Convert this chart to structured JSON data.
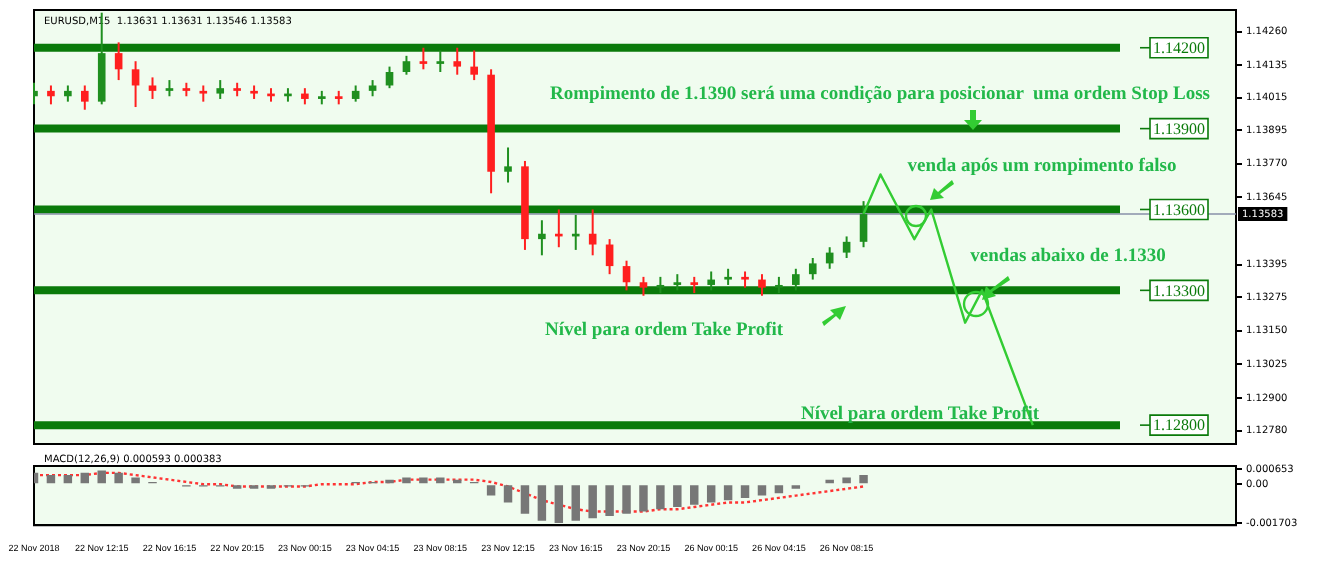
{
  "chart_data": [
    {
      "type": "candlestick",
      "title": "EURUSD,M15  1.13631 1.13631 1.13546 1.13583",
      "categories": [
        null,
        null,
        null,
        null,
        null,
        null,
        null,
        null,
        null,
        null,
        null,
        null,
        null,
        null,
        null,
        null,
        null,
        null,
        null,
        null,
        null,
        null,
        null,
        null,
        null,
        null,
        null,
        null,
        null,
        null,
        null,
        null,
        null,
        null,
        null,
        null,
        null,
        null,
        null,
        null,
        null,
        null,
        null,
        null,
        null,
        null,
        null,
        null,
        null,
        null,
        null,
        null,
        null,
        null,
        null,
        null,
        null,
        null,
        null,
        null,
        null,
        null,
        null,
        null,
        null,
        null,
        null,
        null,
        null,
        null,
        null,
        null
      ],
      "ohlc": [
        [
          1.1402,
          1.1407,
          1.1399,
          1.1404
        ],
        [
          1.1404,
          1.1406,
          1.1399,
          1.1402
        ],
        [
          1.1402,
          1.1406,
          1.14,
          1.1404
        ],
        [
          1.1404,
          1.1406,
          1.1397,
          1.14
        ],
        [
          1.14,
          1.1433,
          1.1399,
          1.1418
        ],
        [
          1.1418,
          1.1422,
          1.1408,
          1.1412
        ],
        [
          1.1412,
          1.1415,
          1.1398,
          1.1406
        ],
        [
          1.1406,
          1.1409,
          1.1401,
          1.1404
        ],
        [
          1.1404,
          1.1408,
          1.1402,
          1.1405
        ],
        [
          1.1405,
          1.1407,
          1.1402,
          1.1404
        ],
        [
          1.1404,
          1.1406,
          1.14,
          1.1403
        ],
        [
          1.1403,
          1.1408,
          1.1401,
          1.1405
        ],
        [
          1.1405,
          1.1407,
          1.1402,
          1.1404
        ],
        [
          1.1404,
          1.1406,
          1.1401,
          1.1403
        ],
        [
          1.1403,
          1.1405,
          1.14,
          1.1402
        ],
        [
          1.1402,
          1.1405,
          1.14,
          1.1403
        ],
        [
          1.1403,
          1.1405,
          1.1399,
          1.1401
        ],
        [
          1.1401,
          1.1404,
          1.1399,
          1.1402
        ],
        [
          1.1402,
          1.1404,
          1.1399,
          1.1401
        ],
        [
          1.1401,
          1.1406,
          1.14,
          1.1404
        ],
        [
          1.1404,
          1.1408,
          1.1402,
          1.1406
        ],
        [
          1.1406,
          1.1413,
          1.1405,
          1.1411
        ],
        [
          1.1411,
          1.1417,
          1.141,
          1.1415
        ],
        [
          1.1415,
          1.142,
          1.1412,
          1.1414
        ],
        [
          1.1414,
          1.1419,
          1.1411,
          1.1415
        ],
        [
          1.1415,
          1.142,
          1.141,
          1.1413
        ],
        [
          1.1413,
          1.1419,
          1.1408,
          1.141
        ],
        [
          1.141,
          1.1412,
          1.1366,
          1.1374
        ],
        [
          1.1374,
          1.1383,
          1.137,
          1.1376
        ],
        [
          1.1376,
          1.1378,
          1.1345,
          1.1349
        ],
        [
          1.1349,
          1.1356,
          1.1343,
          1.1351
        ],
        [
          1.1351,
          1.136,
          1.1346,
          1.135
        ],
        [
          1.135,
          1.1358,
          1.1345,
          1.1351
        ],
        [
          1.1351,
          1.136,
          1.1343,
          1.1347
        ],
        [
          1.1347,
          1.1349,
          1.1336,
          1.1339
        ],
        [
          1.1339,
          1.1341,
          1.133,
          1.1333
        ],
        [
          1.1333,
          1.1335,
          1.1328,
          1.1331
        ],
        [
          1.1331,
          1.1335,
          1.1329,
          1.1332
        ],
        [
          1.1332,
          1.1336,
          1.133,
          1.1333
        ],
        [
          1.1333,
          1.1335,
          1.1329,
          1.1332
        ],
        [
          1.1332,
          1.1337,
          1.133,
          1.1334
        ],
        [
          1.1334,
          1.1338,
          1.1332,
          1.1335
        ],
        [
          1.1335,
          1.1337,
          1.1331,
          1.1334
        ],
        [
          1.1334,
          1.1336,
          1.1328,
          1.1331
        ],
        [
          1.1331,
          1.1335,
          1.1329,
          1.1332
        ],
        [
          1.1332,
          1.1338,
          1.133,
          1.1336
        ],
        [
          1.1336,
          1.1342,
          1.1334,
          1.134
        ],
        [
          1.134,
          1.1346,
          1.1338,
          1.1344
        ],
        [
          1.1344,
          1.135,
          1.1342,
          1.1348
        ],
        [
          1.1348,
          1.13631,
          1.1346,
          1.13583
        ],
        null,
        null,
        null,
        null,
        null,
        null,
        null,
        null,
        null,
        null,
        null,
        null,
        null,
        null,
        null,
        null,
        null,
        null,
        null,
        null,
        null,
        null
      ],
      "series": [
        {
          "type": "line",
          "color": "#33cc33",
          "values": [
            null,
            null,
            null,
            null,
            null,
            null,
            null,
            null,
            null,
            null,
            null,
            null,
            null,
            null,
            null,
            null,
            null,
            null,
            null,
            null,
            null,
            null,
            null,
            null,
            null,
            null,
            null,
            null,
            null,
            null,
            null,
            null,
            null,
            null,
            null,
            null,
            null,
            null,
            null,
            null,
            null,
            null,
            null,
            null,
            null,
            null,
            null,
            null,
            null,
            1.13583,
            1.1373,
            null,
            1.1349,
            1.136,
            null,
            1.1318,
            1.133,
            null,
            null,
            1.128,
            null,
            null,
            null,
            null,
            null,
            null,
            null,
            null,
            null,
            null,
            null,
            null
          ]
        }
      ],
      "ylim": [
        1.1273,
        1.1434
      ],
      "yticks": [
        {
          "value": 1.1426,
          "label": "1.14260"
        },
        {
          "value": 1.14135,
          "label": "1.14135"
        },
        {
          "value": 1.14015,
          "label": "1.14015"
        },
        {
          "value": 1.13895,
          "label": "1.13895"
        },
        {
          "value": 1.1377,
          "label": "1.13770"
        },
        {
          "value": 1.13645,
          "label": "1.13645"
        },
        {
          "value": 1.13395,
          "label": "1.13395"
        },
        {
          "value": 1.13275,
          "label": "1.13275"
        },
        {
          "value": 1.1315,
          "label": "1.13150"
        },
        {
          "value": 1.13025,
          "label": "1.13025"
        },
        {
          "value": 1.129,
          "label": "1.12900"
        },
        {
          "value": 1.1278,
          "label": "1.12780"
        }
      ],
      "tick_labels": "y",
      "ref_lines": [
        {
          "axis": "y",
          "value": 1.142,
          "label": "1.14200",
          "color": "#0a7a0a"
        },
        {
          "axis": "y",
          "value": 1.139,
          "label": "1.13900",
          "color": "#0a7a0a"
        },
        {
          "axis": "y",
          "value": 1.136,
          "label": "1.13600",
          "color": "#0a7a0a"
        },
        {
          "axis": "y",
          "value": 1.133,
          "label": "1.13300",
          "color": "#0a7a0a"
        },
        {
          "axis": "y",
          "value": 1.128,
          "label": "1.12800",
          "color": "#0a7a0a"
        },
        {
          "axis": "y",
          "value": 1.13583,
          "label": "1.13583",
          "color": "#8890a8"
        }
      ],
      "annotations": [
        "Rompimento de 1.1390 será uma condição para posicionar  uma ordem Stop Loss",
        "venda após um rompimento falso",
        "vendas abaixo de 1.1330",
        "Nível para ordem Take Profit",
        "Nível para ordem Take Profit"
      ]
    },
    {
      "type": "bar",
      "title": "MACD(12,26,9) 0.000593 0.000383",
      "categories": [
        "22 Nov 2018",
        null,
        null,
        null,
        "22 Nov 12:15",
        null,
        null,
        null,
        "22 Nov 16:15",
        null,
        null,
        null,
        "22 Nov 20:15",
        null,
        null,
        null,
        "23 Nov 00:15",
        null,
        null,
        null,
        "23 Nov 04:15",
        null,
        null,
        null,
        "23 Nov 08:15",
        null,
        null,
        null,
        "23 Nov 12:15",
        null,
        null,
        null,
        "23 Nov 16:15",
        null,
        null,
        null,
        "23 Nov 20:15",
        null,
        null,
        null,
        "26 Nov 00:15",
        null,
        null,
        null,
        "26 Nov 04:15",
        null,
        null,
        null,
        "26 Nov 08:15",
        null,
        null,
        null,
        null,
        null,
        null,
        null,
        null,
        null,
        null,
        null,
        null,
        null,
        null,
        null,
        null,
        null,
        null,
        null,
        null,
        null,
        null,
        null
      ],
      "series": [
        {
          "type": "bar",
          "color": "#777777",
          "values": [
            0.0005,
            0.0004,
            0.0004,
            0.0005,
            0.0006,
            0.0005,
            0.0003,
            0.0001,
            0,
            -0.0001,
            -0.0001,
            -0.0001,
            -0.0002,
            -0.0002,
            -0.0002,
            -0.0001,
            -0.0001,
            0,
            0,
            0.0001,
            0.0001,
            0.0002,
            0.0003,
            0.0003,
            0.0003,
            0.0002,
            0.0001,
            -0.0005,
            -0.0008,
            -0.0013,
            -0.0016,
            -0.0017,
            -0.0016,
            -0.0015,
            -0.0014,
            -0.0013,
            -0.0012,
            -0.0011,
            -0.001,
            -0.0009,
            -0.0008,
            -0.0007,
            -0.0006,
            -0.0005,
            -0.0004,
            -0.0002,
            0,
            0.0002,
            0.0003,
            0.0004,
            null,
            null,
            null,
            null,
            null,
            null,
            null,
            null,
            null,
            null,
            null,
            null,
            null,
            null,
            null,
            null,
            null,
            null,
            null,
            null,
            null,
            null
          ]
        },
        {
          "type": "line",
          "color": "#ff3333",
          "line_style": "dotted",
          "values": [
            0.0004,
            0.0004,
            0.0004,
            0.0004,
            0.0005,
            0.0005,
            0.0004,
            0.0003,
            0.0002,
            0.0001,
            0,
            0,
            -0.0001,
            -0.0001,
            -0.0001,
            -0.0001,
            -0.0001,
            0,
            0,
            0,
            0.0001,
            0.0001,
            0.0002,
            0.0002,
            0.0002,
            0.0002,
            0.0002,
            0.0001,
            -0.0001,
            -0.0004,
            -0.0007,
            -0.0009,
            -0.0011,
            -0.0012,
            -0.0012,
            -0.0012,
            -0.0012,
            -0.0011,
            -0.0011,
            -0.001,
            -0.0009,
            -0.0008,
            -0.0008,
            -0.0007,
            -0.0006,
            -0.0005,
            -0.0004,
            -0.0003,
            -0.0002,
            -0.0001,
            null,
            null,
            null,
            null,
            null,
            null,
            null,
            null,
            null,
            null,
            null,
            null,
            null,
            null,
            null,
            null,
            null,
            null,
            null,
            null,
            null,
            null
          ]
        }
      ],
      "ylim": [
        -0.0018,
        0.0008
      ],
      "yticks": [
        {
          "value": 0.000653,
          "label": "0.000653"
        },
        {
          "value": 0,
          "label": "0.00"
        },
        {
          "value": -0.001703,
          "label": "-0.001703"
        }
      ]
    }
  ]
}
